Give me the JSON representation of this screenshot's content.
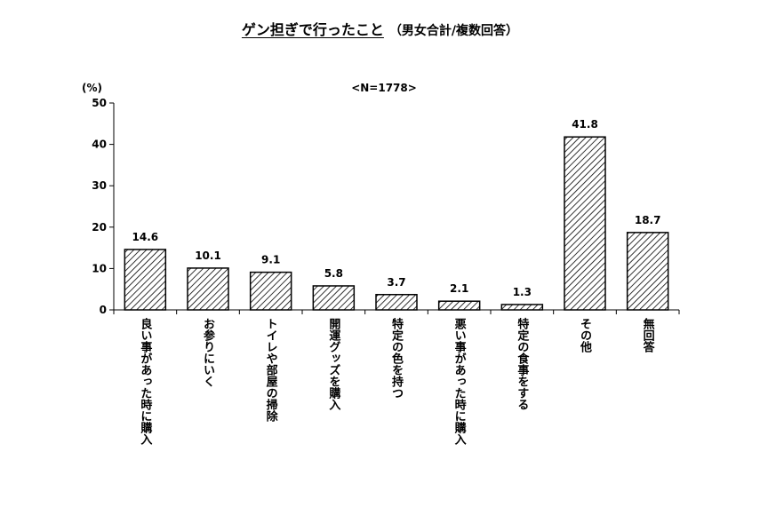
{
  "title": "ゲン担ぎで行ったこと",
  "subtitle": "（男女合計/複数回答）",
  "note": "<N=1778>",
  "chart_data": {
    "type": "bar",
    "ylabel": "(%)",
    "ylim": [
      0,
      50
    ],
    "yticks": [
      0,
      10,
      20,
      30,
      40,
      50
    ],
    "grid": false,
    "bar_pattern": "diagonal-hatch",
    "categories": [
      "良い事があった時に購入",
      "お参りにいく",
      "トイレや部屋の掃除",
      "開運グッズを購入",
      "特定の色を持つ",
      "悪い事があった時に購入",
      "特定の食事をする",
      "その他",
      "無回答"
    ],
    "values": [
      14.6,
      10.1,
      9.1,
      5.8,
      3.7,
      2.1,
      1.3,
      41.8,
      18.7
    ],
    "value_labels": [
      "14.6",
      "10.1",
      "9.1",
      "5.8",
      "3.7",
      "2.1",
      "1.3",
      "41.8",
      "18.7"
    ]
  }
}
